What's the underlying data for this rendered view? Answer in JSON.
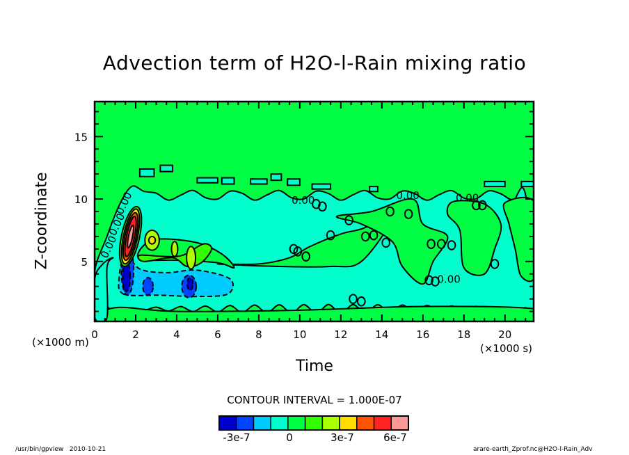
{
  "chart_data": {
    "type": "heatmap",
    "subtype": "filled-contour",
    "title": "Advection term of H2O-l-Rain mixing ratio",
    "xlabel": "Time",
    "ylabel": "Z-coordinate",
    "x_unit_label": "(×1000 s)",
    "y_unit_label": "(×1000 m)",
    "xlim": [
      0,
      21.4
    ],
    "ylim": [
      0.2,
      17.8
    ],
    "x_ticks": [
      0,
      2,
      4,
      6,
      8,
      10,
      12,
      14,
      16,
      18,
      20
    ],
    "x_tick_labels": [
      "0",
      "2",
      "4",
      "6",
      "8",
      "10",
      "12",
      "14",
      "16",
      "18",
      "20"
    ],
    "y_ticks": [
      5,
      10,
      15
    ],
    "y_tick_labels": [
      "5",
      "10",
      "15"
    ],
    "contour_interval_text": "CONTOUR INTERVAL = 1.000E-07",
    "contour_label": "0.00",
    "colorbar": {
      "levels": [
        -4e-07,
        -3e-07,
        -2e-07,
        -1e-07,
        0,
        1e-07,
        2e-07,
        3e-07,
        4e-07,
        5e-07,
        6e-07,
        7e-07
      ],
      "colors": [
        "#0000cc",
        "#0044ff",
        "#00ccff",
        "#00ffcc",
        "#00ff44",
        "#33ff00",
        "#aaff00",
        "#ffdd00",
        "#ff5500",
        "#ff2222",
        "#ff9999"
      ],
      "tick_labels": [
        "-3e-7",
        "0",
        "3e-7",
        "6e-7"
      ]
    },
    "features": [
      {
        "name": "background-near-zero",
        "value_range": [
          0,
          1e-07
        ],
        "region": "upper troposphere z>11 and everywhere outside features"
      },
      {
        "name": "weak-negative-layer",
        "value_range": [
          -1e-07,
          0
        ],
        "t_range": [
          0,
          21.4
        ],
        "z_range": [
          1.0,
          10.5
        ]
      },
      {
        "name": "positive-core",
        "value_max": 7e-07,
        "t_center": 1.7,
        "z_center": 7.2
      },
      {
        "name": "negative-core",
        "value_min": -4e-07,
        "t_center": 1.6,
        "z_center": 4.0
      },
      {
        "name": "negative-pool-2",
        "value_min": -3e-07,
        "t_center": 2.6,
        "z_center": 3.0
      },
      {
        "name": "negative-pool-3",
        "value_min": -3e-07,
        "t_center": 4.6,
        "z_center": 3.0
      },
      {
        "name": "positive-lobe-1",
        "value_max": 3e-07,
        "t_center": 2.8,
        "z_center": 6.6
      },
      {
        "name": "positive-lobe-2",
        "value_max": 2e-07,
        "t_center": 4.7,
        "z_center": 5.3
      }
    ]
  },
  "footer": {
    "program": "/usr/bin/gpview",
    "date": "2010-10-21",
    "source": "arare-earth_Zprof.nc@H2O-l-Rain_Adv"
  }
}
